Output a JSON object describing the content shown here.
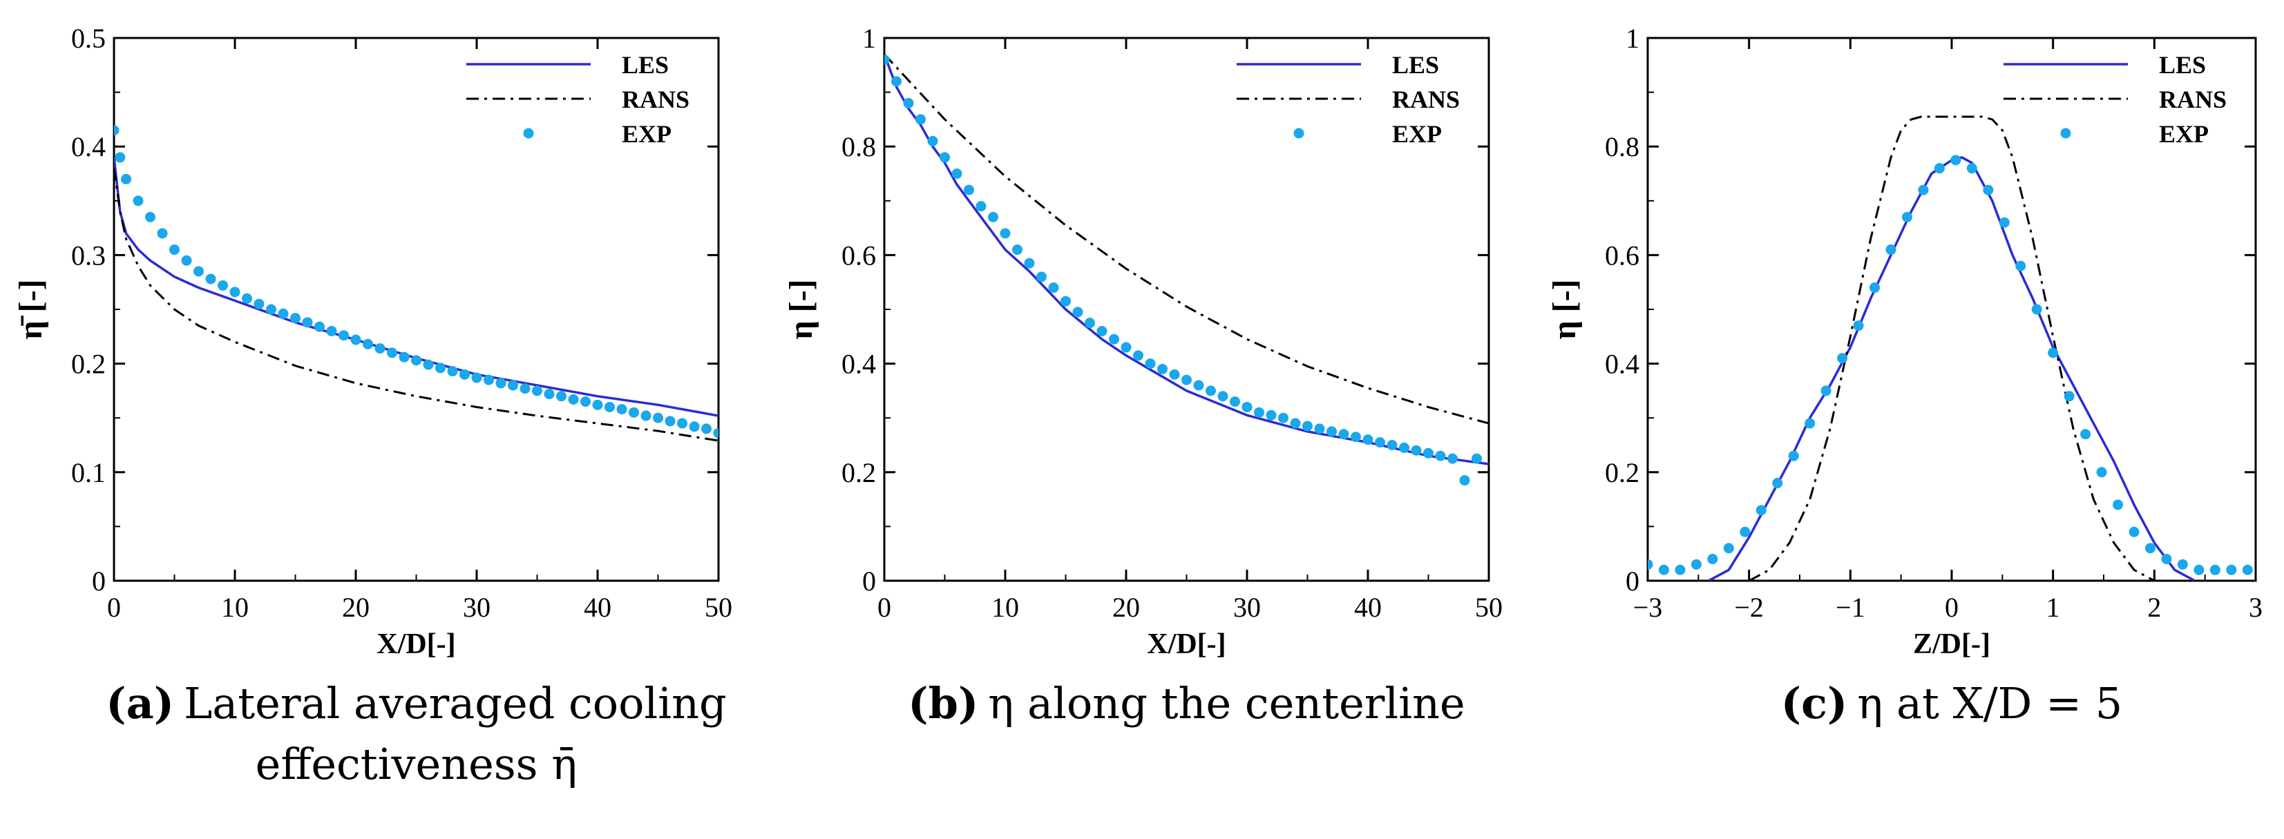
{
  "chart_data": [
    {
      "type": "line",
      "id": "a",
      "title": "",
      "xlabel": "X/D[-]",
      "ylabel": "η̄ [-]",
      "xlim": [
        0,
        50
      ],
      "ylim": [
        0,
        0.5
      ],
      "xticks": [
        0,
        10,
        20,
        30,
        40,
        50
      ],
      "yticks": [
        0,
        0.1,
        0.2,
        0.3,
        0.4,
        0.5
      ],
      "xtick_labels": [
        "0",
        "10",
        "20",
        "30",
        "40",
        "50"
      ],
      "ytick_labels": [
        "0",
        "0.1",
        "0.2",
        "0.3",
        "0.4",
        "0.5"
      ],
      "legend_position": "top-right",
      "caption": {
        "letter": "(a)",
        "text": "Lateral averaged cooling",
        "text2": "effectiveness η̄"
      },
      "series": [
        {
          "name": "LES",
          "style": "solid",
          "color": "#2b2bd6",
          "x": [
            0,
            0.5,
            1,
            2,
            3,
            5,
            7,
            10,
            15,
            20,
            25,
            30,
            35,
            40,
            45,
            50
          ],
          "y": [
            0.39,
            0.34,
            0.32,
            0.305,
            0.295,
            0.28,
            0.27,
            0.258,
            0.238,
            0.222,
            0.205,
            0.19,
            0.18,
            0.17,
            0.162,
            0.152
          ]
        },
        {
          "name": "RANS",
          "style": "dashdot",
          "color": "#000000",
          "x": [
            0,
            0.5,
            1,
            2,
            3,
            5,
            7,
            10,
            15,
            20,
            25,
            30,
            35,
            40,
            45,
            50
          ],
          "y": [
            0.38,
            0.34,
            0.315,
            0.29,
            0.272,
            0.25,
            0.235,
            0.22,
            0.198,
            0.182,
            0.17,
            0.16,
            0.152,
            0.145,
            0.138,
            0.129
          ]
        },
        {
          "name": "EXP",
          "style": "dots",
          "color": "#1aa7ec",
          "x": [
            0,
            0.5,
            1,
            2,
            3,
            4,
            5,
            6,
            7,
            8,
            9,
            10,
            11,
            12,
            13,
            14,
            15,
            16,
            17,
            18,
            19,
            20,
            21,
            22,
            23,
            24,
            25,
            26,
            27,
            28,
            29,
            30,
            31,
            32,
            33,
            34,
            35,
            36,
            37,
            38,
            39,
            40,
            41,
            42,
            43,
            44,
            45,
            46,
            47,
            48,
            49,
            50
          ],
          "y": [
            0.415,
            0.39,
            0.37,
            0.35,
            0.335,
            0.32,
            0.305,
            0.295,
            0.285,
            0.278,
            0.272,
            0.266,
            0.26,
            0.255,
            0.25,
            0.246,
            0.242,
            0.238,
            0.234,
            0.23,
            0.226,
            0.222,
            0.218,
            0.214,
            0.21,
            0.206,
            0.203,
            0.199,
            0.196,
            0.193,
            0.19,
            0.187,
            0.185,
            0.182,
            0.18,
            0.177,
            0.175,
            0.172,
            0.17,
            0.167,
            0.165,
            0.162,
            0.16,
            0.158,
            0.155,
            0.152,
            0.15,
            0.147,
            0.145,
            0.142,
            0.14,
            0.136
          ]
        }
      ]
    },
    {
      "type": "line",
      "id": "b",
      "title": "",
      "xlabel": "X/D[-]",
      "ylabel": "η [-]",
      "xlim": [
        0,
        50
      ],
      "ylim": [
        0,
        1
      ],
      "xticks": [
        0,
        10,
        20,
        30,
        40,
        50
      ],
      "yticks": [
        0,
        0.2,
        0.4,
        0.6,
        0.8,
        1
      ],
      "xtick_labels": [
        "0",
        "10",
        "20",
        "30",
        "40",
        "50"
      ],
      "ytick_labels": [
        "0",
        "0.2",
        "0.4",
        "0.6",
        "0.8",
        "1"
      ],
      "legend_position": "top-right",
      "caption": {
        "letter": "(b)",
        "text": "η along the centerline",
        "text2": ""
      },
      "series": [
        {
          "name": "LES",
          "style": "solid",
          "color": "#2b2bd6",
          "x": [
            0,
            1,
            2,
            3,
            4,
            5,
            6,
            8,
            10,
            12,
            15,
            18,
            20,
            25,
            30,
            35,
            40,
            45,
            50
          ],
          "y": [
            0.97,
            0.91,
            0.87,
            0.84,
            0.8,
            0.77,
            0.73,
            0.67,
            0.61,
            0.57,
            0.5,
            0.445,
            0.415,
            0.35,
            0.305,
            0.275,
            0.255,
            0.23,
            0.215
          ]
        },
        {
          "name": "RANS",
          "style": "dashdot",
          "color": "#000000",
          "x": [
            0,
            5,
            10,
            15,
            20,
            25,
            30,
            35,
            40,
            45,
            50
          ],
          "y": [
            0.97,
            0.85,
            0.745,
            0.655,
            0.575,
            0.505,
            0.445,
            0.395,
            0.355,
            0.32,
            0.29
          ]
        },
        {
          "name": "EXP",
          "style": "dots",
          "color": "#1aa7ec",
          "x": [
            0,
            1,
            2,
            3,
            4,
            5,
            6,
            7,
            8,
            9,
            10,
            11,
            12,
            13,
            14,
            15,
            16,
            17,
            18,
            19,
            20,
            21,
            22,
            23,
            24,
            25,
            26,
            27,
            28,
            29,
            30,
            31,
            32,
            33,
            34,
            35,
            36,
            37,
            38,
            39,
            40,
            41,
            42,
            43,
            44,
            45,
            46,
            47,
            48,
            49
          ],
          "y": [
            0.96,
            0.92,
            0.88,
            0.85,
            0.81,
            0.78,
            0.75,
            0.72,
            0.69,
            0.67,
            0.64,
            0.61,
            0.585,
            0.56,
            0.54,
            0.515,
            0.495,
            0.475,
            0.46,
            0.445,
            0.43,
            0.415,
            0.4,
            0.39,
            0.38,
            0.37,
            0.36,
            0.35,
            0.34,
            0.33,
            0.32,
            0.31,
            0.305,
            0.3,
            0.29,
            0.285,
            0.28,
            0.275,
            0.27,
            0.265,
            0.26,
            0.255,
            0.25,
            0.245,
            0.24,
            0.235,
            0.23,
            0.225,
            0.185,
            0.225
          ]
        }
      ]
    },
    {
      "type": "line",
      "id": "c",
      "title": "",
      "xlabel": "Z/D[-]",
      "ylabel": "η [-]",
      "xlim": [
        -3,
        3
      ],
      "ylim": [
        0,
        1
      ],
      "xticks": [
        -3,
        -2,
        -1,
        0,
        1,
        2,
        3
      ],
      "yticks": [
        0,
        0.2,
        0.4,
        0.6,
        0.8,
        1
      ],
      "xtick_labels": [
        "−3",
        "−2",
        "−1",
        "0",
        "1",
        "2",
        "3"
      ],
      "ytick_labels": [
        "0",
        "0.2",
        "0.4",
        "0.6",
        "0.8",
        "1"
      ],
      "legend_position": "top-right",
      "caption": {
        "letter": "(c)",
        "text": "η at X/D = 5",
        "text2": ""
      },
      "series": [
        {
          "name": "LES",
          "style": "solid",
          "color": "#2b2bd6",
          "x": [
            -2.4,
            -2.2,
            -2.0,
            -1.8,
            -1.6,
            -1.4,
            -1.2,
            -1.0,
            -0.8,
            -0.6,
            -0.4,
            -0.2,
            0,
            0.1,
            0.2,
            0.4,
            0.6,
            0.8,
            1.0,
            1.2,
            1.4,
            1.6,
            1.8,
            2.0,
            2.2,
            2.4
          ],
          "y": [
            0.0,
            0.02,
            0.08,
            0.15,
            0.22,
            0.3,
            0.36,
            0.43,
            0.52,
            0.6,
            0.68,
            0.75,
            0.775,
            0.78,
            0.77,
            0.7,
            0.6,
            0.52,
            0.43,
            0.36,
            0.29,
            0.22,
            0.14,
            0.07,
            0.02,
            0.0
          ]
        },
        {
          "name": "RANS",
          "style": "dashdot",
          "color": "#000000",
          "x": [
            -2.0,
            -1.8,
            -1.6,
            -1.4,
            -1.2,
            -1.0,
            -0.8,
            -0.6,
            -0.5,
            -0.4,
            -0.3,
            0,
            0.3,
            0.4,
            0.5,
            0.6,
            0.8,
            1.0,
            1.2,
            1.4,
            1.6,
            1.8,
            2.0
          ],
          "y": [
            0.0,
            0.02,
            0.07,
            0.15,
            0.28,
            0.45,
            0.63,
            0.78,
            0.83,
            0.85,
            0.855,
            0.855,
            0.855,
            0.85,
            0.83,
            0.78,
            0.63,
            0.45,
            0.28,
            0.15,
            0.07,
            0.02,
            0.0
          ]
        },
        {
          "name": "EXP",
          "style": "dots",
          "color": "#1aa7ec",
          "x": [
            -3.0,
            -2.84,
            -2.68,
            -2.52,
            -2.36,
            -2.2,
            -2.04,
            -1.88,
            -1.72,
            -1.56,
            -1.4,
            -1.24,
            -1.08,
            -0.92,
            -0.76,
            -0.6,
            -0.44,
            -0.28,
            -0.12,
            0.04,
            0.2,
            0.36,
            0.52,
            0.68,
            0.84,
            1.0,
            1.16,
            1.32,
            1.48,
            1.64,
            1.8,
            1.96,
            2.12,
            2.28,
            2.44,
            2.6,
            2.76,
            2.92
          ],
          "y": [
            0.03,
            0.02,
            0.02,
            0.03,
            0.04,
            0.06,
            0.09,
            0.13,
            0.18,
            0.23,
            0.29,
            0.35,
            0.41,
            0.47,
            0.54,
            0.61,
            0.67,
            0.72,
            0.76,
            0.775,
            0.76,
            0.72,
            0.66,
            0.58,
            0.5,
            0.42,
            0.34,
            0.27,
            0.2,
            0.14,
            0.09,
            0.06,
            0.04,
            0.03,
            0.02,
            0.02,
            0.02,
            0.02
          ]
        }
      ]
    }
  ]
}
